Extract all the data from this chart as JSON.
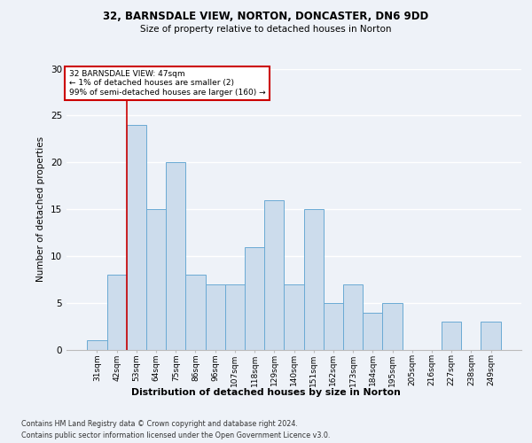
{
  "title_line1": "32, BARNSDALE VIEW, NORTON, DONCASTER, DN6 9DD",
  "title_line2": "Size of property relative to detached houses in Norton",
  "xlabel": "Distribution of detached houses by size in Norton",
  "ylabel": "Number of detached properties",
  "categories": [
    "31sqm",
    "42sqm",
    "53sqm",
    "64sqm",
    "75sqm",
    "86sqm",
    "96sqm",
    "107sqm",
    "118sqm",
    "129sqm",
    "140sqm",
    "151sqm",
    "162sqm",
    "173sqm",
    "184sqm",
    "195sqm",
    "205sqm",
    "216sqm",
    "227sqm",
    "238sqm",
    "249sqm"
  ],
  "values": [
    1,
    8,
    24,
    15,
    20,
    8,
    7,
    7,
    11,
    16,
    7,
    15,
    5,
    7,
    4,
    5,
    0,
    0,
    3,
    0,
    3
  ],
  "bar_color": "#ccdcec",
  "bar_edge_color": "#6aaad4",
  "red_line_x": 1.5,
  "annotation_line1": "32 BARNSDALE VIEW: 47sqm",
  "annotation_line2": "← 1% of detached houses are smaller (2)",
  "annotation_line3": "99% of semi-detached houses are larger (160) →",
  "ylim": [
    0,
    30
  ],
  "yticks": [
    0,
    5,
    10,
    15,
    20,
    25,
    30
  ],
  "footer_line1": "Contains HM Land Registry data © Crown copyright and database right 2024.",
  "footer_line2": "Contains public sector information licensed under the Open Government Licence v3.0.",
  "background_color": "#eef2f8",
  "grid_color": "#ffffff",
  "annotation_box_color": "#ffffff",
  "annotation_box_edge": "#cc0000",
  "red_line_color": "#cc0000"
}
